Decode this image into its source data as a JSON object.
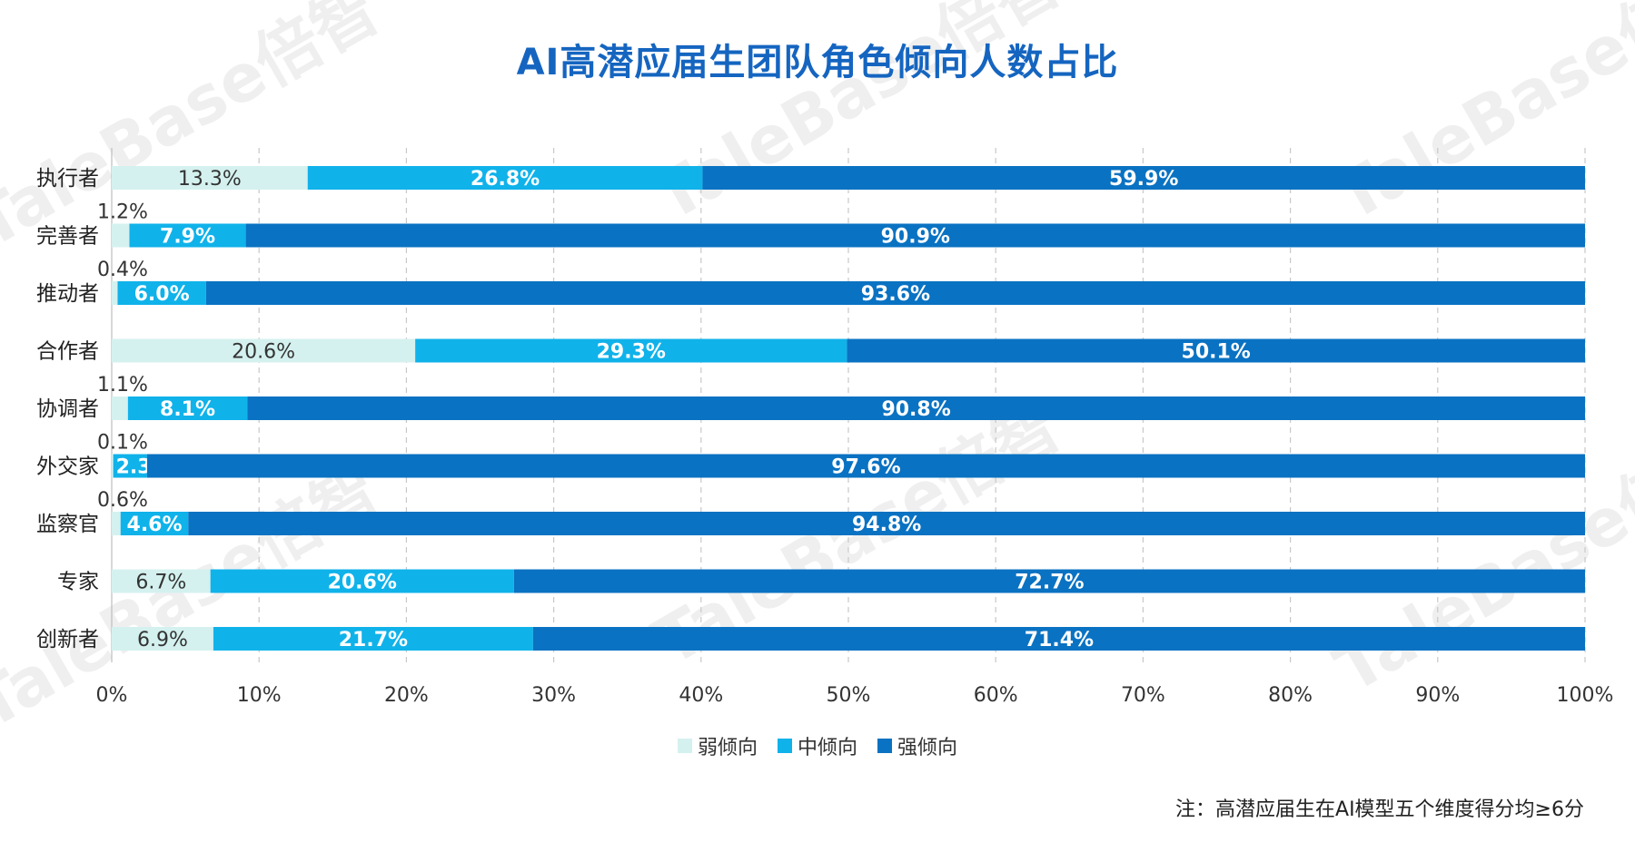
{
  "watermark": "TaleBase倍智",
  "chart_data": {
    "type": "bar",
    "orientation": "horizontal",
    "stacked": true,
    "title": "AI高潜应届生团队角色倾向人数占比",
    "categories": [
      "执行者",
      "完善者",
      "推动者",
      "合作者",
      "协调者",
      "外交家",
      "监察官",
      "专家",
      "创新者"
    ],
    "series": [
      {
        "name": "弱倾向",
        "color": "#D4F1EF",
        "label_color": "#333333",
        "values": [
          13.3,
          1.2,
          0.4,
          20.6,
          1.1,
          0.1,
          0.6,
          6.7,
          6.9
        ]
      },
      {
        "name": "中倾向",
        "color": "#10B2EA",
        "label_color": "#ffffff",
        "values": [
          26.8,
          7.9,
          6.0,
          29.3,
          8.1,
          2.3,
          4.6,
          20.6,
          21.7
        ]
      },
      {
        "name": "强倾向",
        "color": "#0A72C2",
        "label_color": "#ffffff",
        "values": [
          59.9,
          90.9,
          93.6,
          50.1,
          90.8,
          97.6,
          94.8,
          72.7,
          71.4
        ]
      }
    ],
    "xlim": [
      0,
      100
    ],
    "x_ticks": [
      "0%",
      "10%",
      "20%",
      "30%",
      "40%",
      "50%",
      "60%",
      "70%",
      "80%",
      "90%",
      "100%"
    ],
    "value_suffix": "%",
    "grid": "vertical dashed",
    "legend_position": "bottom"
  },
  "footnote": "注：高潜应届生在AI模型五个维度得分均≥6分"
}
